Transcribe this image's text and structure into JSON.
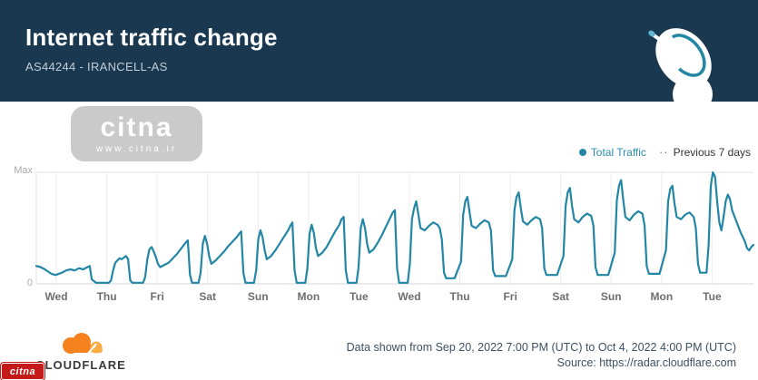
{
  "header": {
    "title": "Internet traffic change",
    "subtitle": "AS44244 - IRANCELL-AS"
  },
  "watermark": {
    "logo_text": "citna",
    "url_text": "www.citna.ir"
  },
  "legend": {
    "total_traffic_label": "Total Traffic",
    "previous_label": "Previous 7 days",
    "dash_glyph": "··"
  },
  "chart_data": {
    "type": "line",
    "title": "Internet traffic change",
    "xlabel": "",
    "ylabel": "",
    "y_axis": {
      "max_label": "Max",
      "zero_label": "0"
    },
    "ylim": [
      0,
      100
    ],
    "grid": true,
    "legend_position": "top-right",
    "x_tick_labels": [
      "Wed",
      "Thu",
      "Fri",
      "Sat",
      "Sun",
      "Mon",
      "Tue",
      "Wed",
      "Thu",
      "Fri",
      "Sat",
      "Sun",
      "Mon",
      "Tue"
    ],
    "x_unit": "hours_from_start",
    "x_range_hours": [
      0,
      336
    ],
    "series": [
      {
        "name": "Total Traffic",
        "color": "#2386a5",
        "points": [
          [
            0,
            16
          ],
          [
            2,
            15
          ],
          [
            4,
            13
          ],
          [
            7,
            9
          ],
          [
            9,
            8
          ],
          [
            12,
            10
          ],
          [
            14,
            12
          ],
          [
            16,
            13
          ],
          [
            18,
            12
          ],
          [
            20,
            14
          ],
          [
            22,
            13
          ],
          [
            24,
            15
          ],
          [
            25,
            16
          ],
          [
            26,
            4
          ],
          [
            28,
            1
          ],
          [
            34,
            1
          ],
          [
            35,
            3
          ],
          [
            36,
            12
          ],
          [
            37,
            19
          ],
          [
            39,
            23
          ],
          [
            40,
            22
          ],
          [
            42,
            25
          ],
          [
            43,
            22
          ],
          [
            44,
            3
          ],
          [
            45,
            1
          ],
          [
            50,
            1
          ],
          [
            51,
            6
          ],
          [
            52,
            22
          ],
          [
            53,
            31
          ],
          [
            54,
            33
          ],
          [
            55,
            29
          ],
          [
            56,
            24
          ],
          [
            57,
            18
          ],
          [
            58,
            15
          ],
          [
            60,
            17
          ],
          [
            62,
            19
          ],
          [
            64,
            23
          ],
          [
            66,
            27
          ],
          [
            68,
            32
          ],
          [
            70,
            37
          ],
          [
            71,
            39
          ],
          [
            72,
            8
          ],
          [
            73,
            1
          ],
          [
            76,
            1
          ],
          [
            77,
            10
          ],
          [
            78,
            36
          ],
          [
            79,
            43
          ],
          [
            80,
            36
          ],
          [
            81,
            25
          ],
          [
            82,
            18
          ],
          [
            84,
            21
          ],
          [
            86,
            25
          ],
          [
            88,
            29
          ],
          [
            90,
            34
          ],
          [
            92,
            38
          ],
          [
            94,
            42
          ],
          [
            95,
            45
          ],
          [
            96,
            47
          ],
          [
            97,
            10
          ],
          [
            98,
            1
          ],
          [
            102,
            1
          ],
          [
            103,
            12
          ],
          [
            104,
            40
          ],
          [
            105,
            48
          ],
          [
            106,
            42
          ],
          [
            107,
            30
          ],
          [
            108,
            22
          ],
          [
            110,
            25
          ],
          [
            112,
            30
          ],
          [
            114,
            36
          ],
          [
            116,
            42
          ],
          [
            118,
            48
          ],
          [
            119,
            52
          ],
          [
            120,
            55
          ],
          [
            121,
            12
          ],
          [
            122,
            1
          ],
          [
            126,
            1
          ],
          [
            127,
            14
          ],
          [
            128,
            45
          ],
          [
            129,
            53
          ],
          [
            130,
            46
          ],
          [
            131,
            32
          ],
          [
            132,
            25
          ],
          [
            134,
            28
          ],
          [
            136,
            33
          ],
          [
            138,
            40
          ],
          [
            140,
            47
          ],
          [
            142,
            53
          ],
          [
            143,
            58
          ],
          [
            144,
            60
          ],
          [
            145,
            12
          ],
          [
            146,
            1
          ],
          [
            150,
            1
          ],
          [
            151,
            15
          ],
          [
            152,
            50
          ],
          [
            153,
            58
          ],
          [
            154,
            50
          ],
          [
            155,
            36
          ],
          [
            156,
            28
          ],
          [
            158,
            31
          ],
          [
            160,
            37
          ],
          [
            162,
            44
          ],
          [
            164,
            52
          ],
          [
            166,
            60
          ],
          [
            167,
            64
          ],
          [
            168,
            66
          ],
          [
            169,
            14
          ],
          [
            170,
            1
          ],
          [
            174,
            1
          ],
          [
            175,
            18
          ],
          [
            176,
            58
          ],
          [
            177,
            68
          ],
          [
            178,
            74
          ],
          [
            179,
            62
          ],
          [
            180,
            50
          ],
          [
            182,
            48
          ],
          [
            184,
            52
          ],
          [
            186,
            55
          ],
          [
            188,
            53
          ],
          [
            189,
            50
          ],
          [
            190,
            40
          ],
          [
            191,
            10
          ],
          [
            192,
            5
          ],
          [
            196,
            5
          ],
          [
            199,
            20
          ],
          [
            200,
            62
          ],
          [
            201,
            74
          ],
          [
            202,
            78
          ],
          [
            203,
            64
          ],
          [
            204,
            52
          ],
          [
            206,
            50
          ],
          [
            208,
            54
          ],
          [
            210,
            57
          ],
          [
            212,
            55
          ],
          [
            213,
            48
          ],
          [
            214,
            12
          ],
          [
            215,
            7
          ],
          [
            220,
            7
          ],
          [
            223,
            22
          ],
          [
            224,
            66
          ],
          [
            225,
            78
          ],
          [
            226,
            82
          ],
          [
            227,
            68
          ],
          [
            228,
            56
          ],
          [
            230,
            53
          ],
          [
            232,
            57
          ],
          [
            234,
            60
          ],
          [
            236,
            58
          ],
          [
            237,
            50
          ],
          [
            238,
            14
          ],
          [
            239,
            8
          ],
          [
            244,
            8
          ],
          [
            247,
            25
          ],
          [
            248,
            70
          ],
          [
            249,
            82
          ],
          [
            250,
            86
          ],
          [
            251,
            70
          ],
          [
            252,
            58
          ],
          [
            254,
            55
          ],
          [
            256,
            60
          ],
          [
            258,
            63
          ],
          [
            260,
            61
          ],
          [
            261,
            52
          ],
          [
            262,
            15
          ],
          [
            263,
            8
          ],
          [
            268,
            8
          ],
          [
            271,
            28
          ],
          [
            272,
            75
          ],
          [
            273,
            88
          ],
          [
            274,
            93
          ],
          [
            275,
            75
          ],
          [
            276,
            60
          ],
          [
            278,
            57
          ],
          [
            280,
            62
          ],
          [
            282,
            65
          ],
          [
            284,
            63
          ],
          [
            285,
            52
          ],
          [
            286,
            16
          ],
          [
            287,
            9
          ],
          [
            292,
            9
          ],
          [
            295,
            30
          ],
          [
            296,
            74
          ],
          [
            297,
            85
          ],
          [
            298,
            88
          ],
          [
            299,
            72
          ],
          [
            300,
            60
          ],
          [
            302,
            58
          ],
          [
            304,
            62
          ],
          [
            306,
            64
          ],
          [
            308,
            60
          ],
          [
            309,
            50
          ],
          [
            310,
            18
          ],
          [
            311,
            10
          ],
          [
            314,
            10
          ],
          [
            315,
            35
          ],
          [
            316,
            88
          ],
          [
            317,
            100
          ],
          [
            318,
            96
          ],
          [
            319,
            74
          ],
          [
            320,
            55
          ],
          [
            321,
            48
          ],
          [
            322,
            60
          ],
          [
            323,
            74
          ],
          [
            324,
            80
          ],
          [
            325,
            76
          ],
          [
            326,
            66
          ],
          [
            328,
            56
          ],
          [
            330,
            46
          ],
          [
            332,
            38
          ],
          [
            333,
            32
          ],
          [
            334,
            30
          ],
          [
            335,
            33
          ],
          [
            336,
            35
          ]
        ]
      },
      {
        "name": "Previous 7 days",
        "style": "dashed",
        "color": "#7a7a7a",
        "points": []
      }
    ]
  },
  "footer": {
    "data_range": "Data shown from Sep 20, 2022 7:00 PM (UTC) to Oct 4, 2022 4:00 PM (UTC)",
    "source": "Source: https://radar.cloudflare.com"
  },
  "branding": {
    "cloudflare_label": "CLOUDFLARE",
    "citna_badge_text": "citna"
  },
  "colors": {
    "header_bg": "#1a3950",
    "line": "#2386a5",
    "gridline": "#ececec",
    "axis": "#dcdcdc",
    "cloudflare_orange": "#f6821f",
    "cloudflare_light_orange": "#fbad41",
    "citna_red": "#c51a1a"
  }
}
